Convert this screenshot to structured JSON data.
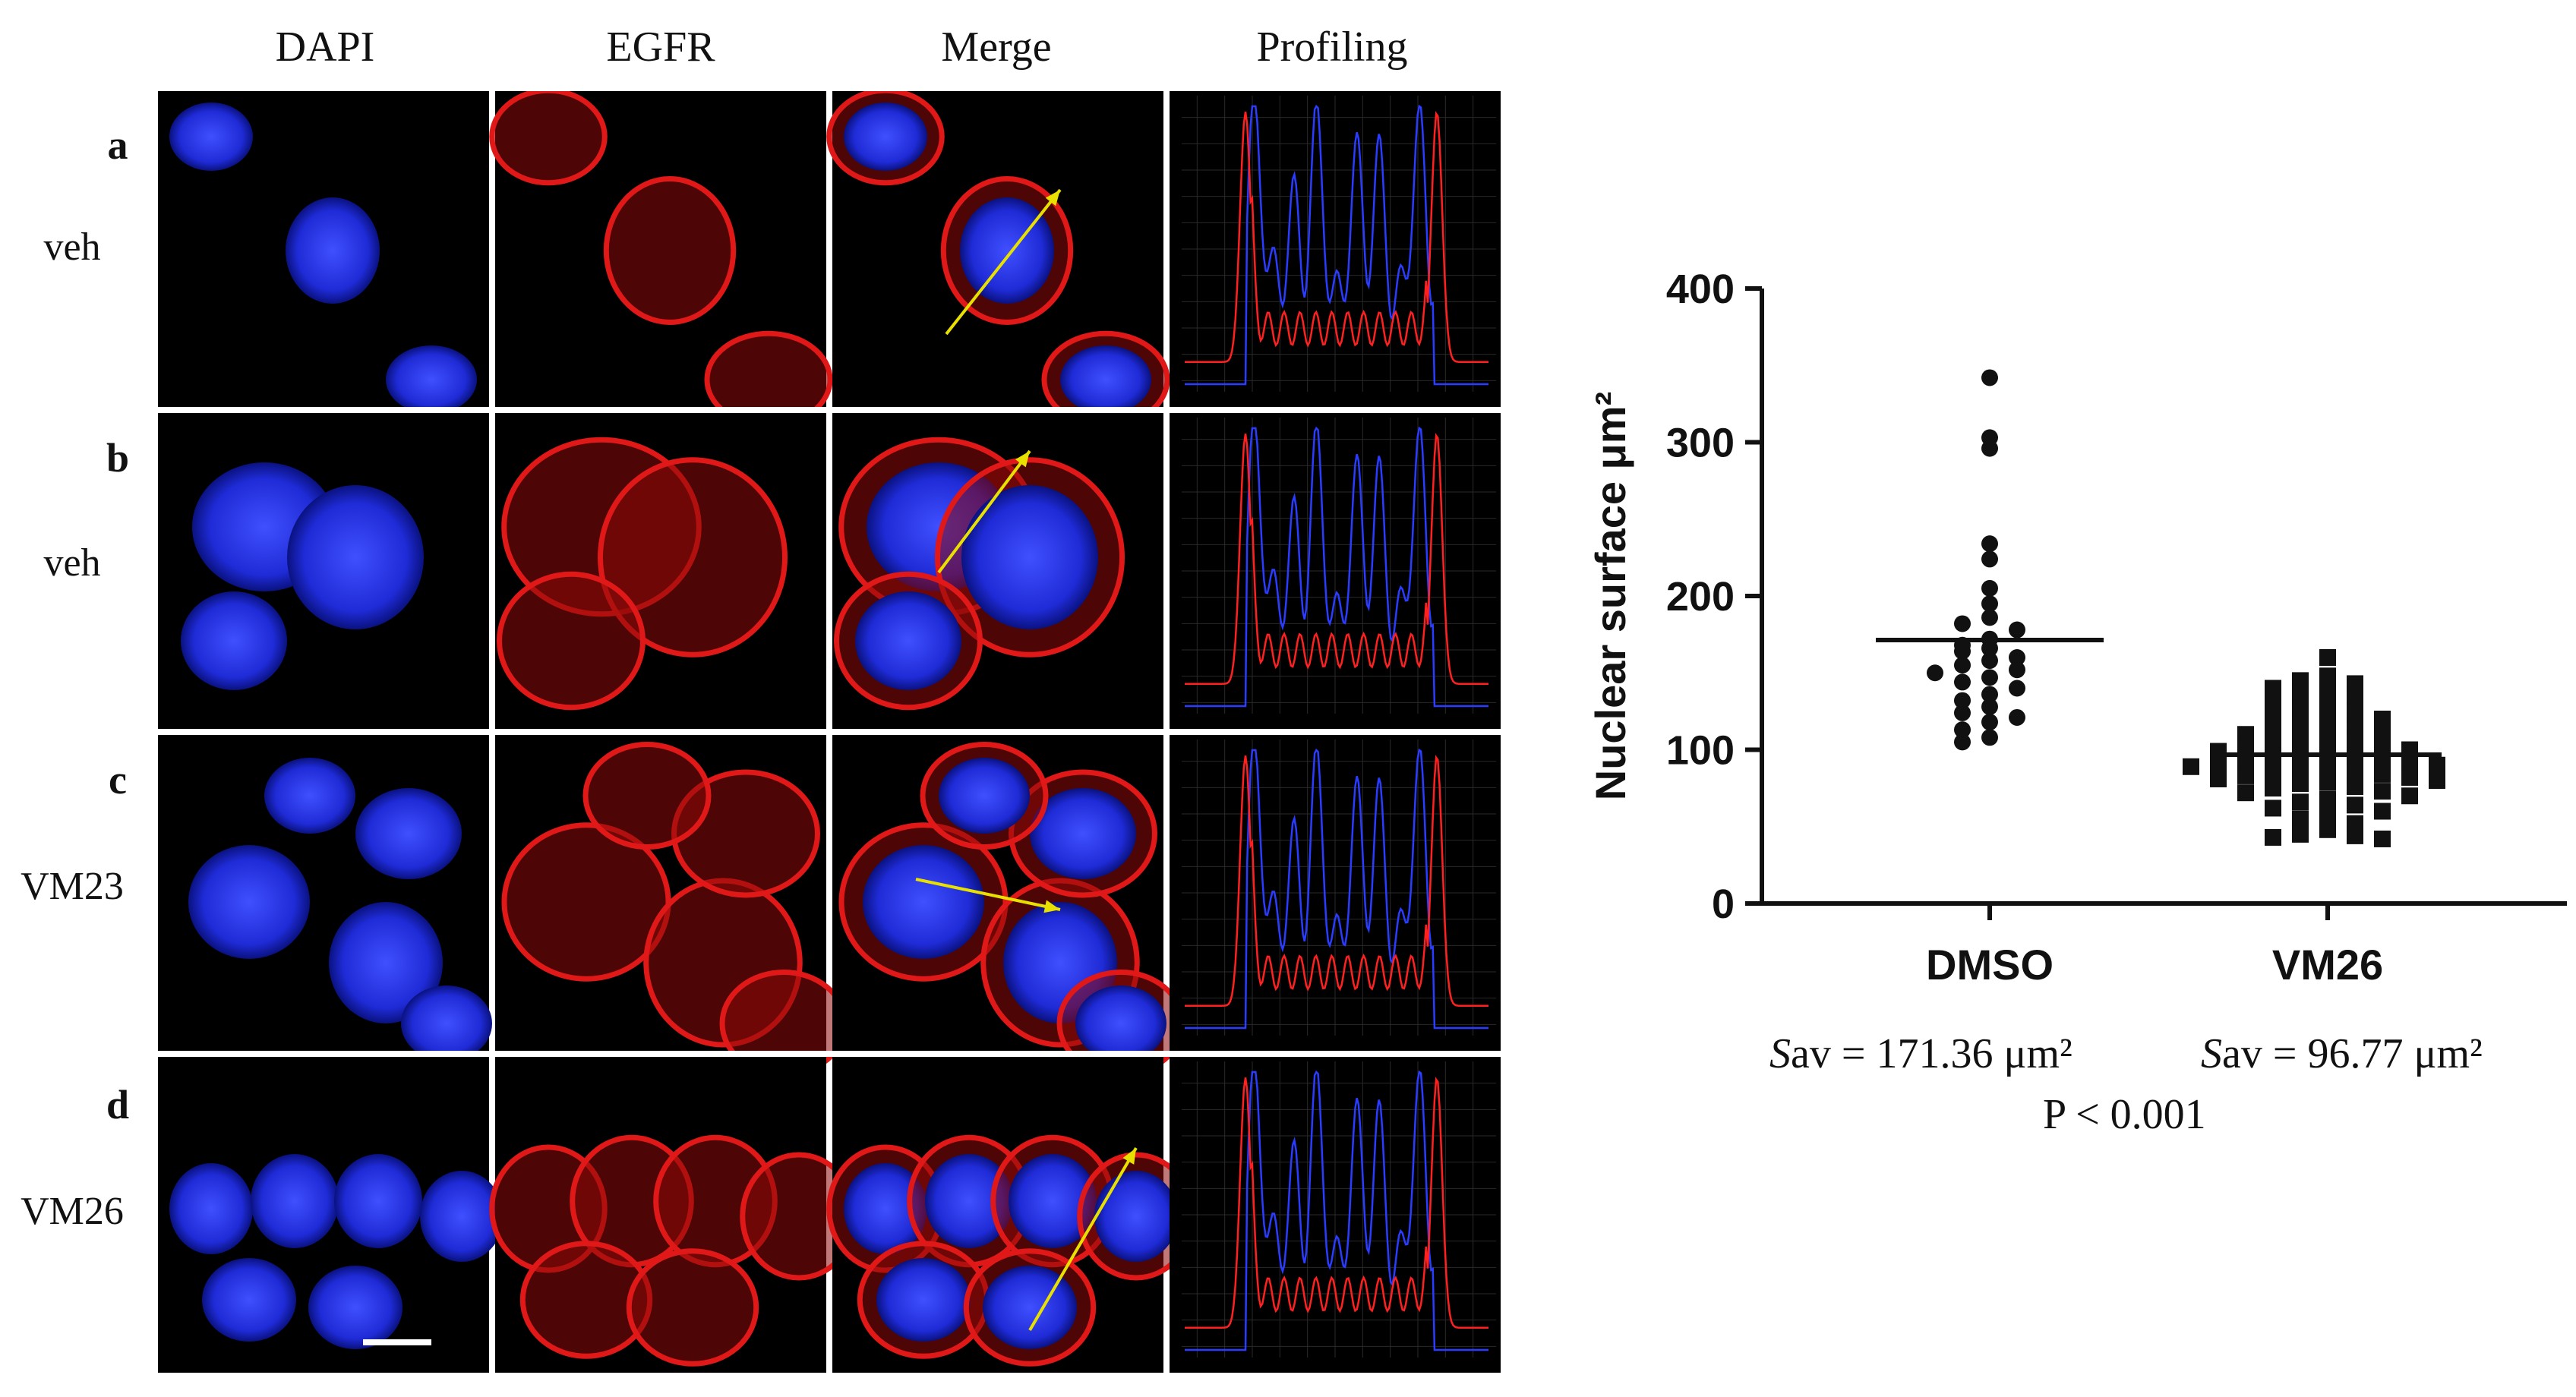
{
  "figure": {
    "column_labels": [
      "DAPI",
      "EGFR",
      "Merge",
      "Profiling"
    ],
    "rows": [
      {
        "letter": "a",
        "condition": "veh"
      },
      {
        "letter": "b",
        "condition": "veh"
      },
      {
        "letter": "c",
        "condition": "VM23"
      },
      {
        "letter": "d",
        "condition": "VM26"
      }
    ],
    "colors": {
      "background": "#000000",
      "dapi": "#1f2bd6",
      "egfr": "#e01818",
      "arrow": "#e8e000",
      "grid_line": "#2a2a2a",
      "profile_blue": "#2a3cff",
      "profile_red": "#ff2020"
    }
  },
  "scatter": {
    "stat_dmso_prefix": "S",
    "stat_dmso_rest": "av = 171.36 μm²",
    "stat_vm26_prefix": "S",
    "stat_vm26_rest": "av = 96.77 μm²",
    "p_value": "P < 0.001"
  },
  "chart_data": {
    "type": "scatter",
    "ylabel": "Nuclear surface μm²",
    "ylim": [
      0,
      400
    ],
    "yticks": [
      0,
      100,
      200,
      300,
      400
    ],
    "categories": [
      "DMSO",
      "VM26"
    ],
    "series": [
      {
        "marker": "circle",
        "mean": 171.36,
        "values": [
          342,
          303,
          296,
          234,
          224,
          205,
          195,
          186,
          182,
          178,
          172,
          168,
          166,
          164,
          160,
          158,
          155,
          152,
          150,
          147,
          144,
          140,
          136,
          132,
          128,
          124,
          121,
          118,
          113,
          108,
          105
        ]
      },
      {
        "marker": "square",
        "mean": 96.77,
        "values": [
          160,
          148,
          145,
          143,
          140,
          138,
          136,
          133,
          130,
          128,
          126,
          124,
          122,
          120,
          118,
          117,
          115,
          113,
          112,
          110,
          108,
          107,
          105,
          104,
          102,
          101,
          100,
          99,
          98,
          97,
          96,
          95,
          94,
          93,
          92,
          91,
          90,
          89,
          88,
          87,
          86,
          85,
          84,
          83,
          82,
          81,
          80,
          79,
          78,
          76,
          75,
          73,
          72,
          70,
          68,
          66,
          64,
          62,
          60,
          58,
          55,
          52,
          48,
          45,
          44,
          43,
          42
        ]
      }
    ]
  }
}
